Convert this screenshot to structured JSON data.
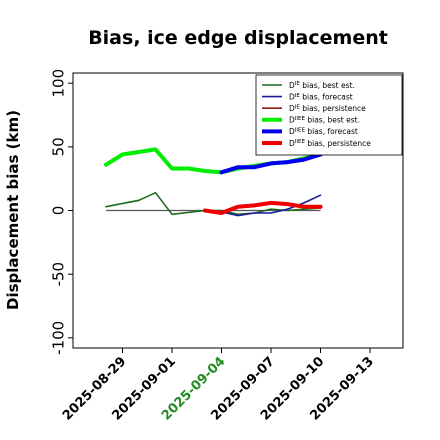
{
  "chart_data": {
    "type": "line",
    "title": "Bias, ice edge displacement",
    "xlabel": "",
    "ylabel": "Displacement bias (km)",
    "ylim": [
      -108,
      108
    ],
    "xlim": [
      "2025-08-26",
      "2025-09-15"
    ],
    "yticks": [
      -100,
      -50,
      0,
      50,
      100
    ],
    "xticks": [
      {
        "date": "2025-08-29",
        "label": "2025-08-29",
        "color": "#000000"
      },
      {
        "date": "2025-09-01",
        "label": "2025-09-01",
        "color": "#000000"
      },
      {
        "date": "2025-09-04",
        "label": "2025-09-04",
        "color": "#228b22"
      },
      {
        "date": "2025-09-07",
        "label": "2025-09-07",
        "color": "#000000"
      },
      {
        "date": "2025-09-10",
        "label": "2025-09-10",
        "color": "#000000"
      },
      {
        "date": "2025-09-13",
        "label": "2025-09-13",
        "color": "#000000"
      }
    ],
    "legend_position": "top-right",
    "series": [
      {
        "name": "DIE bias, best est.",
        "name_main": "D",
        "name_sup": "IE",
        "name_rest": " bias, best est.",
        "color": "#1e6b1e",
        "width": 1.6,
        "points": [
          [
            "2025-08-28",
            3
          ],
          [
            "2025-08-30",
            8
          ],
          [
            "2025-08-31",
            14
          ],
          [
            "2025-09-01",
            -3
          ],
          [
            "2025-09-03",
            0
          ],
          [
            "2025-09-04",
            0
          ],
          [
            "2025-09-05",
            -3
          ],
          [
            "2025-09-06",
            -2
          ],
          [
            "2025-09-07",
            1
          ],
          [
            "2025-09-08",
            0
          ],
          [
            "2025-09-09",
            1
          ],
          [
            "2025-09-10",
            2
          ]
        ]
      },
      {
        "name": "DIE bias, forecast",
        "name_main": "D",
        "name_sup": "IE",
        "name_rest": " bias, forecast",
        "color": "#1a1aa0",
        "width": 1.6,
        "points": [
          [
            "2025-09-03",
            0
          ],
          [
            "2025-09-04",
            -1
          ],
          [
            "2025-09-05",
            -4
          ],
          [
            "2025-09-06",
            -2
          ],
          [
            "2025-09-07",
            -2
          ],
          [
            "2025-09-08",
            1
          ],
          [
            "2025-09-09",
            6
          ],
          [
            "2025-09-10",
            12
          ]
        ]
      },
      {
        "name": "DIE bias, persistence",
        "name_main": "D",
        "name_sup": "IE",
        "name_rest": " bias, persistence",
        "color": "#8b1a1a",
        "width": 1.6,
        "points": [
          [
            "2025-09-03",
            0
          ],
          [
            "2025-09-04",
            -1
          ],
          [
            "2025-09-05",
            3
          ],
          [
            "2025-09-06",
            4
          ],
          [
            "2025-09-07",
            6
          ],
          [
            "2025-09-08",
            5
          ],
          [
            "2025-09-09",
            3
          ],
          [
            "2025-09-10",
            2
          ]
        ]
      },
      {
        "name": "DIIEE bias, best est.",
        "name_main": "D",
        "name_sup": "IIEE",
        "name_rest": " bias, best est.",
        "color": "#00ee00",
        "width": 4,
        "points": [
          [
            "2025-08-28",
            36
          ],
          [
            "2025-08-29",
            44
          ],
          [
            "2025-08-31",
            48
          ],
          [
            "2025-09-01",
            33
          ],
          [
            "2025-09-02",
            33
          ],
          [
            "2025-09-03",
            31
          ],
          [
            "2025-09-04",
            30
          ],
          [
            "2025-09-05",
            33
          ],
          [
            "2025-09-06",
            35
          ],
          [
            "2025-09-07",
            37
          ],
          [
            "2025-09-08",
            38
          ],
          [
            "2025-09-09",
            41
          ],
          [
            "2025-09-10",
            44
          ]
        ]
      },
      {
        "name": "DIIEE bias, forecast",
        "name_main": "D",
        "name_sup": "IIEE",
        "name_rest": " bias, forecast",
        "color": "#0000ee",
        "width": 4,
        "points": [
          [
            "2025-09-04",
            30
          ],
          [
            "2025-09-05",
            34
          ],
          [
            "2025-09-06",
            34
          ],
          [
            "2025-09-07",
            37
          ],
          [
            "2025-09-08",
            38
          ],
          [
            "2025-09-09",
            40
          ],
          [
            "2025-09-10",
            44
          ]
        ]
      },
      {
        "name": "DIIEE bias, persistence",
        "name_main": "D",
        "name_sup": "IIEE",
        "name_rest": " bias, persistence",
        "color": "#ee0000",
        "width": 4,
        "points": [
          [
            "2025-09-03",
            0
          ],
          [
            "2025-09-04",
            -2
          ],
          [
            "2025-09-05",
            3
          ],
          [
            "2025-09-06",
            4
          ],
          [
            "2025-09-07",
            6
          ],
          [
            "2025-09-08",
            5
          ],
          [
            "2025-09-09",
            3
          ],
          [
            "2025-09-10",
            3
          ]
        ]
      }
    ],
    "reference_line": {
      "y": 0,
      "x_start": "2025-08-28",
      "x_end": "2025-09-10",
      "color": "#555555"
    }
  }
}
